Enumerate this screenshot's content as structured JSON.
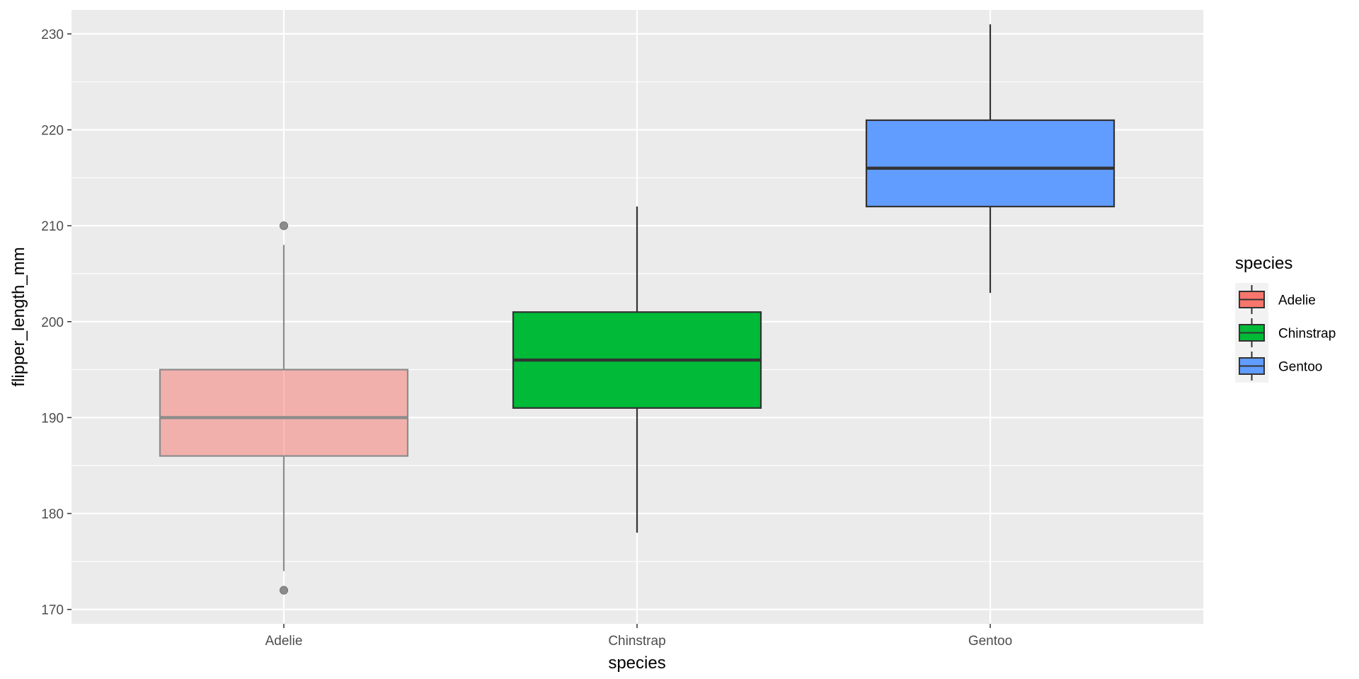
{
  "chart_data": {
    "type": "box",
    "title": "",
    "xlabel": "species",
    "ylabel": "flipper_length_mm",
    "categories": [
      "Adelie",
      "Chinstrap",
      "Gentoo"
    ],
    "ylim": [
      168.5,
      232.5
    ],
    "yticks": [
      170,
      180,
      190,
      200,
      210,
      220,
      230
    ],
    "grid": true,
    "legend": {
      "title": "species",
      "position": "right",
      "entries": [
        "Adelie",
        "Chinstrap",
        "Gentoo"
      ]
    },
    "series": [
      {
        "category": "Adelie",
        "whisker_low": 174,
        "q1": 186,
        "median": 190,
        "q3": 195,
        "whisker_high": 208,
        "outliers": [
          172,
          210
        ],
        "fill": "#F8766D",
        "faded": true
      },
      {
        "category": "Chinstrap",
        "whisker_low": 178,
        "q1": 191,
        "median": 196,
        "q3": 201,
        "whisker_high": 212,
        "outliers": [],
        "fill": "#00BA38",
        "faded": false
      },
      {
        "category": "Gentoo",
        "whisker_low": 203,
        "q1": 212,
        "median": 216,
        "q3": 221,
        "whisker_high": 231,
        "outliers": [],
        "fill": "#619CFF",
        "faded": false
      }
    ]
  },
  "colors": {
    "panel": "#EBEBEB",
    "grid_major": "#FFFFFF",
    "outline": "#333333",
    "faded_outline": "#8C8C8C"
  }
}
